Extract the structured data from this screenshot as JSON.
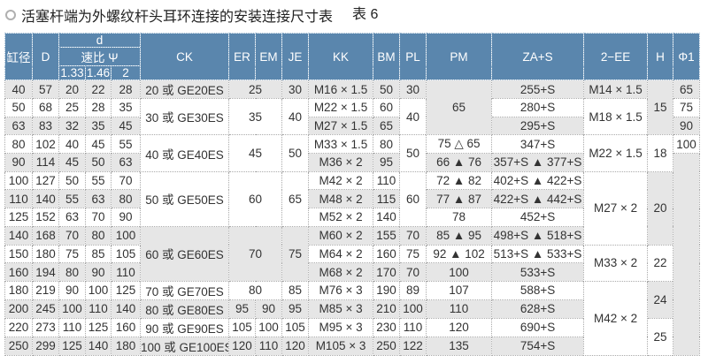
{
  "title": "活塞杆端为外螺纹杆头耳环连接的安装连接尺寸表",
  "table_no": "表 6",
  "header": [
    [
      {
        "t": "缸径",
        "rs": 3
      },
      {
        "t": "D",
        "rs": 3
      },
      {
        "t": "d",
        "cs": 3
      },
      {
        "t": "CK",
        "rs": 3
      },
      {
        "t": "ER",
        "rs": 3
      },
      {
        "t": "EM",
        "rs": 3
      },
      {
        "t": "JE",
        "rs": 3
      },
      {
        "t": "KK",
        "rs": 3
      },
      {
        "t": "BM",
        "rs": 3
      },
      {
        "t": "PL",
        "rs": 3
      },
      {
        "t": "PM",
        "rs": 3
      },
      {
        "t": "ZA+S",
        "rs": 3
      },
      {
        "t": "2−EE",
        "rs": 3
      },
      {
        "t": "H",
        "rs": 3
      },
      {
        "t": "Φ1",
        "rs": 3
      }
    ],
    [
      {
        "t": "速比 Ψ",
        "cs": 3
      }
    ],
    [
      {
        "t": "1.33"
      },
      {
        "t": "1.46"
      },
      {
        "t": "2"
      }
    ]
  ],
  "rows": [
    [
      "40",
      "57",
      "20",
      "22",
      "28",
      "20 或 GE20ES",
      {
        "t": "25",
        "cs": 2
      },
      "30",
      "M16 × 1.5",
      "50",
      "30",
      {
        "t": "65",
        "rs": 3,
        "shade": true
      },
      "255+S",
      "M14 × 1.5",
      {
        "t": "15",
        "rs": 3,
        "shade": true
      },
      "65"
    ],
    [
      "50",
      "68",
      "25",
      "28",
      "35",
      {
        "t": "30 或 GE30ES",
        "rs": 2,
        "shade": false
      },
      {
        "t": "35",
        "cs": 2,
        "rs": 2,
        "shade": false
      },
      {
        "t": "40",
        "rs": 2,
        "shade": false
      },
      "M22 × 1.5",
      "60",
      {
        "t": "40",
        "rs": 2,
        "shade": false
      },
      "280+S",
      {
        "t": "M18 × 1.5",
        "rs": 2,
        "shade": false
      },
      "75"
    ],
    [
      "63",
      "83",
      "32",
      "35",
      "45",
      "M27 × 1.5",
      "65",
      "295+S",
      "90"
    ],
    [
      "80",
      "102",
      "40",
      "45",
      "55",
      {
        "t": "40 或 GE40ES",
        "rs": 2,
        "shade": false
      },
      {
        "t": "45",
        "cs": 2,
        "rs": 2,
        "shade": false
      },
      {
        "t": "50",
        "rs": 2,
        "shade": false
      },
      "M33 × 1.5",
      "80",
      {
        "t": "50",
        "rs": 2,
        "shade": false
      },
      "75 △ 65",
      "347+S",
      {
        "t": "M22 × 1.5",
        "rs": 2,
        "shade": false
      },
      {
        "t": "18",
        "rs": 2,
        "shade": false
      },
      "100"
    ],
    [
      "90",
      "114",
      "45",
      "50",
      "63",
      "M36 × 2",
      "95",
      "66 ▲ 76",
      "357+S ▲ 377+S",
      {
        "t": "",
        "rs": 11,
        "shade": true
      }
    ],
    [
      "100",
      "127",
      "50",
      "55",
      "70",
      {
        "t": "50 或 GE50ES",
        "rs": 3,
        "shade": false
      },
      {
        "t": "60",
        "cs": 2,
        "rs": 3,
        "shade": false
      },
      {
        "t": "65",
        "rs": 3,
        "shade": false
      },
      "M42 × 2",
      "110",
      {
        "t": "60",
        "rs": 3,
        "shade": false
      },
      "72 ▲ 82",
      "402+S ▲ 422+S",
      {
        "t": "M27 × 2",
        "rs": 4,
        "shade": false
      },
      {
        "t": "20",
        "rs": 4,
        "shade": true
      }
    ],
    [
      "110",
      "140",
      "55",
      "63",
      "80",
      "M48 × 2",
      "115",
      "77 ▲ 87",
      "422+S ▲ 442+S"
    ],
    [
      "125",
      "152",
      "63",
      "70",
      "90",
      "M52 × 2",
      "140",
      "78",
      "452+S"
    ],
    [
      "140",
      "168",
      "70",
      "80",
      "100",
      {
        "t": "60 或 GE60ES",
        "rs": 3,
        "shade": true
      },
      {
        "t": "70",
        "cs": 2,
        "rs": 3,
        "shade": true
      },
      {
        "t": "75",
        "rs": 3,
        "shade": true
      },
      "M60 × 2",
      "155",
      "70",
      "85 ▲ 95",
      "498+S ▲ 518+S"
    ],
    [
      "150",
      "180",
      "75",
      "85",
      "105",
      "M64 × 2",
      "160",
      "75",
      "92 ▲ 102",
      "513+S ▲ 533+S",
      {
        "t": "M33 × 2",
        "rs": 2,
        "shade": false
      },
      {
        "t": "22",
        "rs": 2,
        "shade": false
      }
    ],
    [
      "160",
      "194",
      "80",
      "90",
      "110",
      "M68 × 2",
      "170",
      "70",
      "100",
      "533+S"
    ],
    [
      "180",
      "219",
      "90",
      "100",
      "125",
      "70 或 GE70ES",
      {
        "t": "80",
        "cs": 2
      },
      "85",
      "M76 × 3",
      "190",
      "89",
      "107",
      "588+S",
      {
        "t": "M42 × 2",
        "rs": 4,
        "shade": false
      },
      {
        "t": "24",
        "rs": 2,
        "shade": true
      }
    ],
    [
      "200",
      "245",
      "100",
      "110",
      "140",
      "80 或 GE80ES",
      "95",
      "90",
      "95",
      "M85 × 3",
      "210",
      "100",
      "110",
      "628+S"
    ],
    [
      "220",
      "273",
      "110",
      "125",
      "160",
      "90 或 GE90ES",
      "105",
      "100",
      "105",
      "M95 × 3",
      "230",
      "110",
      "120",
      "690+S",
      {
        "t": "25",
        "rs": 2,
        "shade": false
      }
    ],
    [
      "250",
      "299",
      "125",
      "140",
      "180",
      "100 或 GE100ES",
      "120",
      "110",
      "120",
      "M105 × 3",
      "250",
      "122",
      "135",
      "754+S"
    ]
  ]
}
